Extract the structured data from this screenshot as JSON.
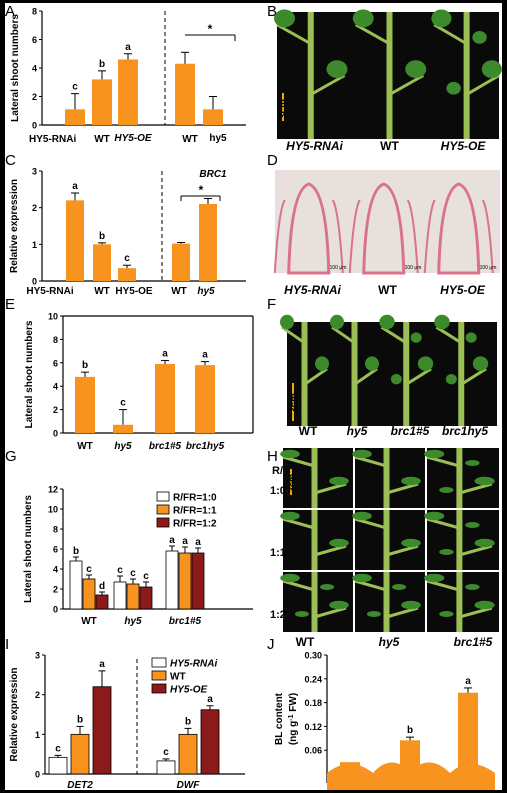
{
  "colors": {
    "orange": "#f7931e",
    "white": "#ffffff",
    "darkred": "#8b1a1a",
    "axis": "#000000",
    "scalebar": "#f7a700",
    "photo_bg": "#0a0a0a",
    "stem": "#9bbf55",
    "leaf": "#3c8a2c",
    "histo_bg": "#e8e0dc",
    "histo_pink": "#d9728a"
  },
  "panels": {
    "A": "A",
    "B": "B",
    "C": "C",
    "D": "D",
    "E": "E",
    "F": "F",
    "G": "G",
    "H": "H",
    "I": "I",
    "J": "J"
  },
  "chart_data": [
    {
      "panel": "A",
      "type": "bar",
      "ylabel": "Lateral shoot numbers",
      "ylim": [
        0,
        8
      ],
      "yticks": [
        0,
        2,
        4,
        6,
        8
      ],
      "categories": [
        "HY5-RNAi",
        "WT",
        "HY5-OE",
        "WT",
        "hy5"
      ],
      "values": [
        1.1,
        3.2,
        4.6,
        4.3,
        1.1
      ],
      "errors": [
        1.1,
        0.6,
        0.4,
        0.8,
        0.9
      ],
      "letters": [
        "c",
        "b",
        "a",
        "",
        ""
      ],
      "significance": "*",
      "divider_after": 3
    },
    {
      "panel": "C",
      "type": "bar",
      "ylabel": "Relative expression",
      "title": "BRC1",
      "ylim": [
        0,
        3
      ],
      "yticks": [
        0,
        1,
        2,
        3
      ],
      "categories": [
        "HY5-RNAi",
        "WT",
        "HY5-OE",
        "WT",
        "hy5"
      ],
      "values": [
        2.2,
        1.0,
        0.35,
        1.02,
        2.1
      ],
      "errors": [
        0.2,
        0.04,
        0.08,
        0.03,
        0.15
      ],
      "letters": [
        "a",
        "b",
        "c",
        "",
        ""
      ],
      "significance": "*",
      "divider_after": 3
    },
    {
      "panel": "E",
      "type": "bar",
      "ylabel": "Lateral shoot numbers",
      "ylim": [
        0,
        10
      ],
      "yticks": [
        0,
        2,
        4,
        6,
        8,
        10
      ],
      "categories": [
        "WT",
        "hy5",
        "brc1#5",
        "brc1hy5"
      ],
      "values": [
        4.8,
        0.7,
        5.9,
        5.8
      ],
      "errors": [
        0.4,
        1.3,
        0.3,
        0.3
      ],
      "letters": [
        "b",
        "c",
        "a",
        "a"
      ]
    },
    {
      "panel": "G",
      "type": "bar",
      "ylabel": "Lateral shoot numbers",
      "ylim": [
        0,
        12
      ],
      "yticks": [
        0,
        2,
        4,
        6,
        8,
        10,
        12
      ],
      "categories": [
        "WT",
        "hy5",
        "brc1#5"
      ],
      "series": [
        {
          "name": "R/FR=1:0",
          "values": [
            4.8,
            2.7,
            5.8
          ],
          "errors": [
            0.4,
            0.6,
            0.5
          ],
          "letters": [
            "b",
            "c",
            "a"
          ]
        },
        {
          "name": "R/FR=1:1",
          "values": [
            3.0,
            2.5,
            5.6
          ],
          "errors": [
            0.4,
            0.5,
            0.6
          ],
          "letters": [
            "c",
            "c",
            "a"
          ]
        },
        {
          "name": "R/FR=1:2",
          "values": [
            1.4,
            2.2,
            5.6
          ],
          "errors": [
            0.3,
            0.5,
            0.5
          ],
          "letters": [
            "d",
            "c",
            "a"
          ]
        }
      ],
      "legend_position": "top-right"
    },
    {
      "panel": "I",
      "type": "bar",
      "ylabel": "Relative expression",
      "ylim": [
        0,
        3
      ],
      "yticks": [
        0,
        1,
        2,
        3
      ],
      "categories": [
        "DET2",
        "DWF"
      ],
      "series": [
        {
          "name": "HY5-RNAi",
          "values": [
            0.42,
            0.33
          ],
          "errors": [
            0.05,
            0.05
          ],
          "letters": [
            "c",
            "c"
          ]
        },
        {
          "name": "WT",
          "values": [
            1.0,
            1.0
          ],
          "errors": [
            0.2,
            0.15
          ],
          "letters": [
            "b",
            "b"
          ]
        },
        {
          "name": "HY5-OE",
          "values": [
            2.2,
            1.62
          ],
          "errors": [
            0.4,
            0.1
          ],
          "letters": [
            "a",
            "a"
          ]
        }
      ],
      "legend_position": "top-right",
      "divider_after": 1
    },
    {
      "panel": "J",
      "type": "bar",
      "ylabel": "BL content",
      "ylabel2": "(ng g",
      "ylabel_sup": "-1",
      "ylabel3": " FW)",
      "ylim": [
        0,
        0.3
      ],
      "ytick_labels": [
        "0.30",
        "0.24",
        "0.18",
        "0.12",
        "0.06"
      ],
      "yticks": [
        0.3,
        0.24,
        0.18,
        0.12,
        0.06
      ],
      "categories": [
        "",
        "",
        ""
      ],
      "values": [
        0.03,
        0.085,
        0.205
      ],
      "errors": [
        0.0,
        0.008,
        0.012
      ],
      "letters": [
        "",
        "b",
        "a"
      ]
    }
  ],
  "photo_B": {
    "labels": [
      "HY5-RNAi",
      "WT",
      "HY5-OE"
    ],
    "scale": "3cm"
  },
  "photo_D": {
    "labels": [
      "HY5-RNAi",
      "WT",
      "HY5-OE"
    ],
    "scale": [
      "100 μm",
      "100 μm",
      "100 μm"
    ]
  },
  "photo_F": {
    "labels": [
      "WT",
      "hy5",
      "brc1#5",
      "brc1hy5"
    ],
    "scale": "3cm"
  },
  "photo_H": {
    "title": "R/FR",
    "rows": [
      "1:0",
      "1:1",
      "1:2"
    ],
    "labels": [
      "WT",
      "hy5",
      "brc1#5"
    ],
    "scale": "3cm"
  }
}
